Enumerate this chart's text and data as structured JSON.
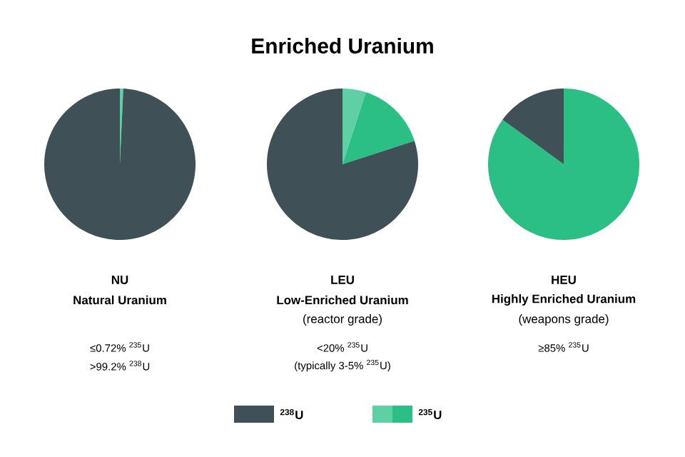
{
  "chart_data": [
    {
      "type": "pie",
      "subtitle": "NU",
      "xlabel": "Natural Uranium",
      "categories": [
        null,
        null
      ],
      "values": [
        0.72,
        99.28
      ],
      "colors": [
        "#5fd0a6",
        "#3f5156"
      ],
      "annotations": [
        "≤0.72% $^{235}$U",
        ">99.2% $^{238}$U"
      ]
    },
    {
      "type": "pie",
      "title": "Enriched Uranium",
      "subtitle": "LEU",
      "xlabel": "Low-Enriched Uranium",
      "categories": [
        null,
        "$^{235}$U",
        "$^{238}$U"
      ],
      "values": [
        5,
        15,
        80
      ],
      "colors": [
        "#5fd0a6",
        "#2bbf85",
        "#3f5156"
      ],
      "annotations": [
        "(reactor grade)",
        "<20% $^{235}$U",
        "(typically 3-5% $^{235}$U)"
      ],
      "legend": "bottom"
    },
    {
      "type": "pie",
      "subtitle": "HEU",
      "xlabel": "Highly Enriched Uranium",
      "categories": [
        null,
        null
      ],
      "values": [
        85,
        15
      ],
      "colors": [
        "#2bbf85",
        "#3f5156"
      ],
      "annotations": [
        "(weapons grade)",
        "≥85% $^{235}$U"
      ]
    }
  ]
}
